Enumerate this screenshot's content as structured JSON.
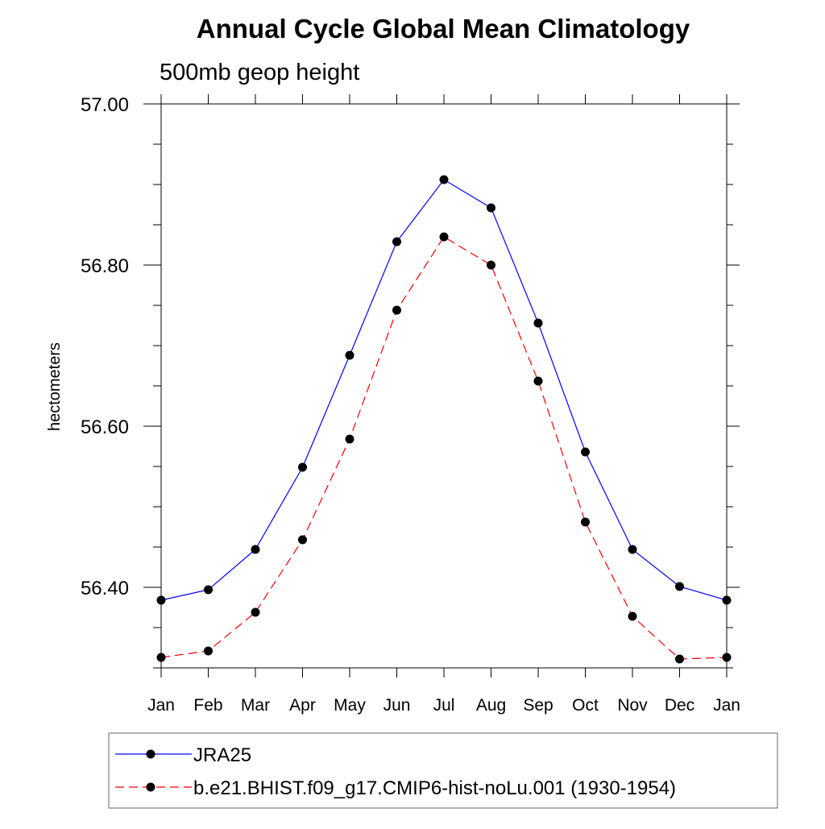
{
  "chart_data": {
    "type": "line",
    "title": "Annual Cycle Global Mean Climatology",
    "subtitle": "500mb geop height",
    "xlabel": "",
    "ylabel": "hectometers",
    "categories": [
      "Jan",
      "Feb",
      "Mar",
      "Apr",
      "May",
      "Jun",
      "Jul",
      "Aug",
      "Sep",
      "Oct",
      "Nov",
      "Dec",
      "Jan"
    ],
    "y_ticks": [
      "57.00",
      "56.80",
      "56.60",
      "56.40"
    ],
    "y_tick_values": [
      57.0,
      56.8,
      56.6,
      56.4
    ],
    "ylim": [
      56.3,
      57.0
    ],
    "grid": false,
    "legend_position": "bottom",
    "series": [
      {
        "name": "JRA25",
        "color": "#0000ff",
        "dash": "solid",
        "marker": "filled-circle",
        "values": [
          56.384,
          56.397,
          56.447,
          56.549,
          56.688,
          56.829,
          56.906,
          56.871,
          56.728,
          56.568,
          56.447,
          56.401,
          56.384
        ]
      },
      {
        "name": "b.e21.BHIST.f09_g17.CMIP6-hist-noLu.001 (1930-1954)",
        "color": "#ff0000",
        "dash": "dashed",
        "marker": "filled-circle",
        "values": [
          56.313,
          56.321,
          56.369,
          56.459,
          56.584,
          56.744,
          56.835,
          56.8,
          56.656,
          56.481,
          56.364,
          56.311,
          56.313
        ]
      }
    ]
  }
}
